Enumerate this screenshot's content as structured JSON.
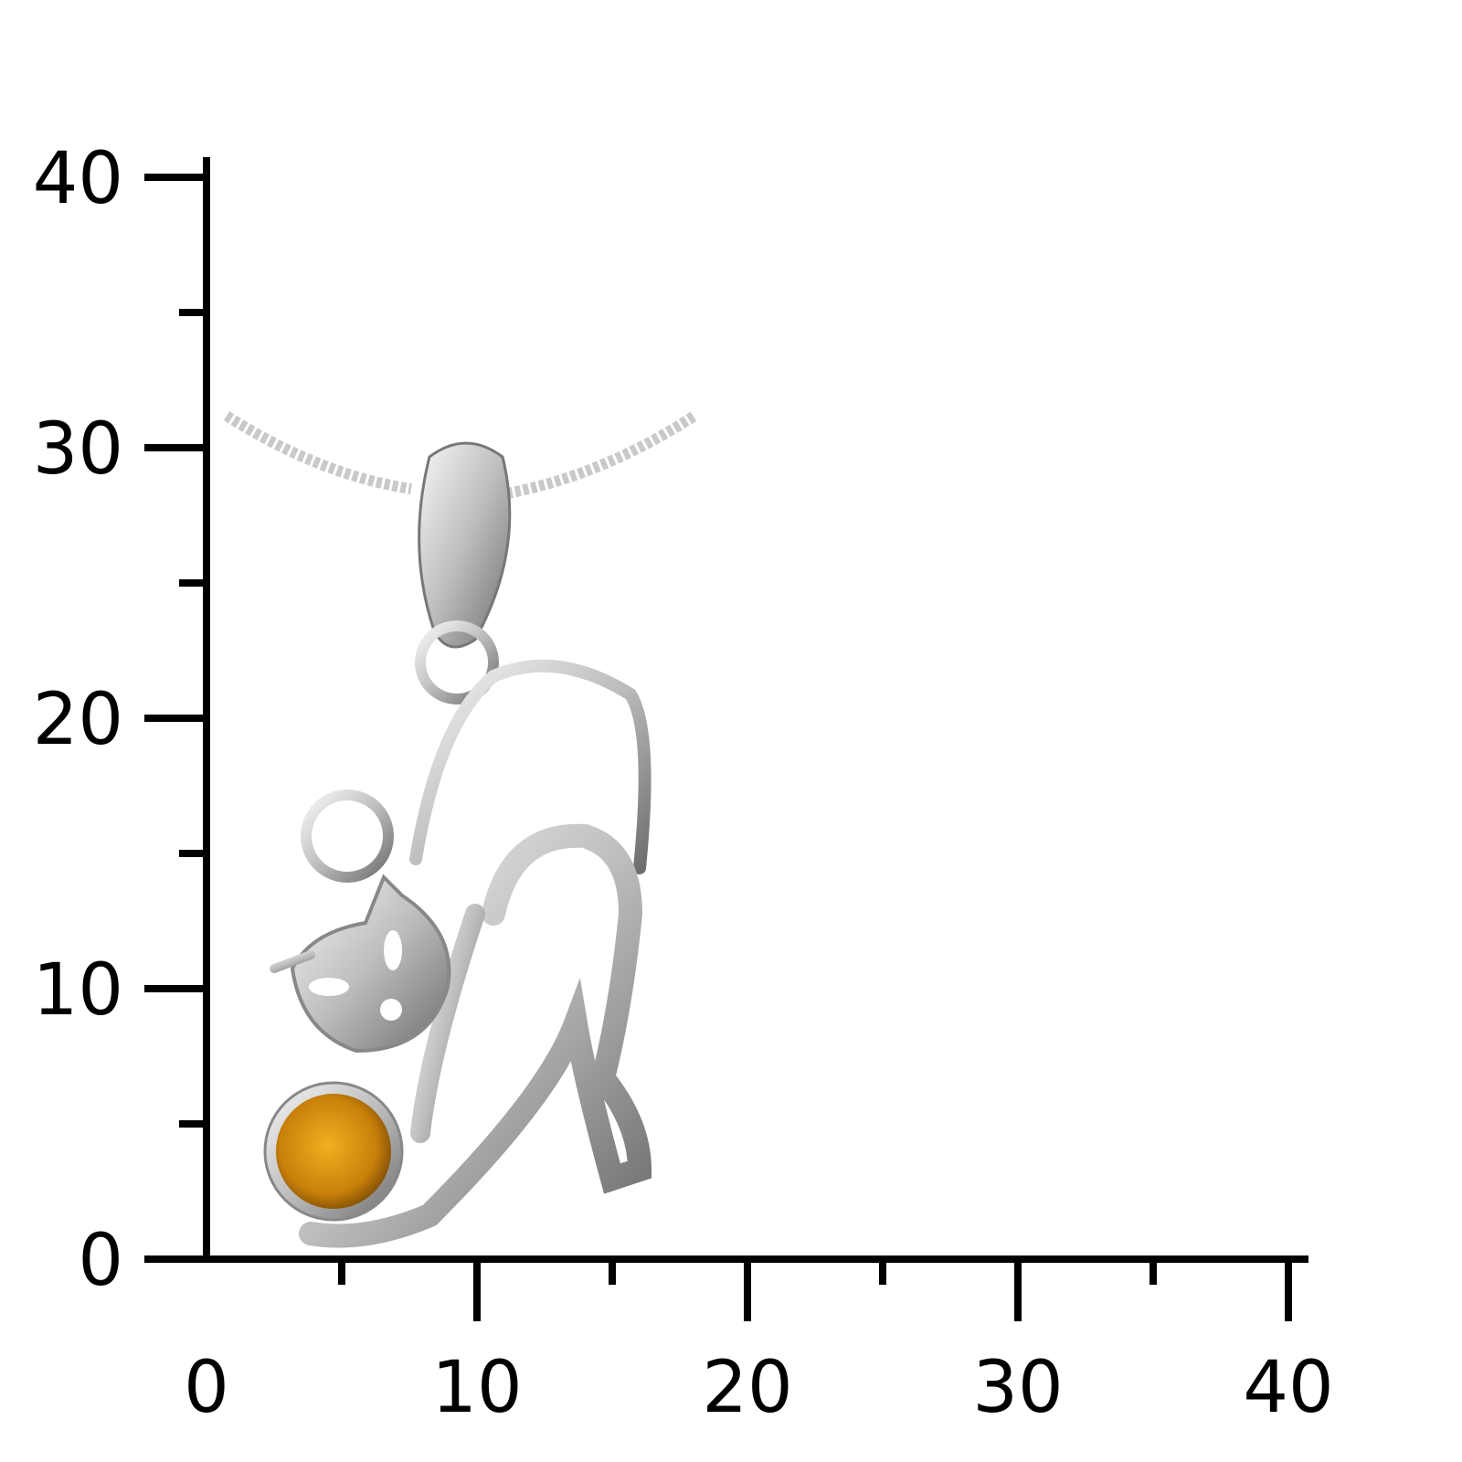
{
  "scale": {
    "unit_ticks_x": [
      "0",
      "10",
      "20",
      "30",
      "40"
    ],
    "unit_ticks_y": [
      "0",
      "10",
      "20",
      "30",
      "40"
    ],
    "range": [
      0,
      40
    ],
    "minor_step": 5
  },
  "product": {
    "subject": "silver-cat-pendant-with-amber",
    "metal_color": "#d8d8d8",
    "stone_color": "#d08a10"
  }
}
